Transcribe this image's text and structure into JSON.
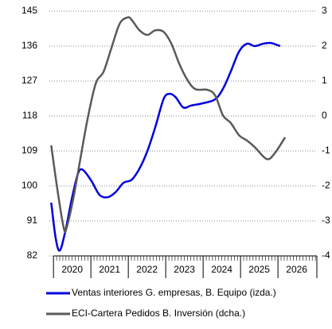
{
  "chart_data": {
    "type": "line",
    "xlim": [
      2019.89,
      2027.04
    ],
    "xticks": [
      2020,
      2021,
      2022,
      2023,
      2024,
      2025,
      2026
    ],
    "ylim": [
      82,
      145
    ],
    "yticks": [
      82,
      91,
      100,
      109,
      118,
      127,
      136,
      145
    ],
    "y2lim": [
      -4,
      3
    ],
    "y2ticks": [
      3,
      2,
      1,
      0,
      -1,
      -2,
      -3,
      -4
    ],
    "grid": true,
    "series": [
      {
        "name": "Ventas interiores G. empresas, B. Equipo (izda.)",
        "color": "#0000dd",
        "x": [
          2019.94,
          2020.06,
          2020.17,
          2020.32,
          2020.49,
          2020.66,
          2020.79,
          2021.02,
          2021.23,
          2021.45,
          2021.66,
          2021.87,
          2022.09,
          2022.3,
          2022.51,
          2022.72,
          2022.94,
          2023.09,
          2023.26,
          2023.47,
          2023.68,
          2024.0,
          2024.32,
          2024.53,
          2024.74,
          2024.96,
          2025.17,
          2025.38,
          2025.6,
          2025.81,
          2026.06
        ],
        "values": [
          95.7,
          86.5,
          83.4,
          88.5,
          96.7,
          103.3,
          104.1,
          101.2,
          97.7,
          97.1,
          98.4,
          100.8,
          101.6,
          104.5,
          109,
          115.1,
          122.3,
          123.7,
          122.9,
          120.2,
          120.7,
          121.3,
          122.3,
          125,
          129.5,
          134.6,
          136.6,
          136,
          136.6,
          136.8,
          136
        ]
      },
      {
        "name": "ECI-Cartera Pedidos B. Inversión (dcha.)",
        "color": "#5a5a5a",
        "axis": "y2",
        "x": [
          2019.94,
          2020.11,
          2020.28,
          2020.36,
          2020.53,
          2020.7,
          2020.91,
          2021.13,
          2021.34,
          2021.55,
          2021.77,
          2021.98,
          2022.09,
          2022.3,
          2022.51,
          2022.72,
          2022.94,
          2023.15,
          2023.36,
          2023.57,
          2023.79,
          2024.11,
          2024.32,
          2024.53,
          2024.74,
          2024.96,
          2025.17,
          2025.38,
          2025.7,
          2025.91,
          2026.19
        ],
        "values": [
          -0.84,
          -2.14,
          -3.23,
          -3.16,
          -2.36,
          -1.34,
          -0.09,
          0.93,
          1.27,
          1.95,
          2.64,
          2.82,
          2.75,
          2.45,
          2.32,
          2.45,
          2.41,
          2.07,
          1.5,
          1.05,
          0.77,
          0.75,
          0.59,
          0.02,
          -0.2,
          -0.55,
          -0.7,
          -0.89,
          -1.23,
          -1.07,
          -0.61
        ]
      }
    ]
  }
}
